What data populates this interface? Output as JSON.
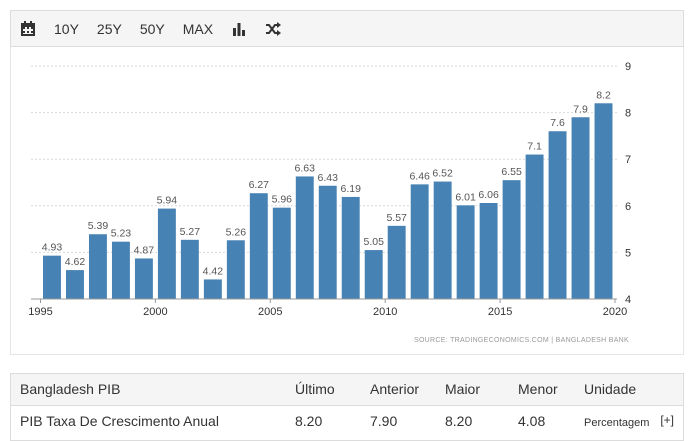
{
  "toolbar": {
    "items": [
      {
        "label": "10Y"
      },
      {
        "label": "25Y"
      },
      {
        "label": "50Y"
      },
      {
        "label": "MAX"
      }
    ],
    "icons": [
      "calendar-icon",
      "bar-chart-icon",
      "shuffle-icon"
    ]
  },
  "chart_data": {
    "type": "bar",
    "title": "",
    "xlabel": "",
    "ylabel": "",
    "x": [
      1995,
      1996,
      1997,
      1998,
      1999,
      2000,
      2001,
      2002,
      2003,
      2004,
      2005,
      2006,
      2007,
      2008,
      2009,
      2010,
      2011,
      2012,
      2013,
      2014,
      2015,
      2016,
      2017,
      2018,
      2019
    ],
    "values": [
      4.93,
      4.62,
      5.39,
      5.23,
      4.87,
      5.94,
      5.27,
      4.42,
      5.26,
      6.27,
      5.96,
      6.63,
      6.43,
      6.19,
      5.05,
      5.57,
      6.46,
      6.52,
      6.01,
      6.06,
      6.55,
      7.1,
      7.6,
      7.9,
      8.2
    ],
    "labels": [
      "4.93",
      "4.62",
      "5.39",
      "5.23",
      "4.87",
      "5.94",
      "5.27",
      "4.42",
      "5.26",
      "6.27",
      "5.96",
      "6.63",
      "6.43",
      "6.19",
      "5.05",
      "5.57",
      "6.46",
      "6.52",
      "6.01",
      "6.06",
      "6.55",
      "7.1",
      "7.6",
      "7.9",
      "8.2"
    ],
    "ylim": [
      4,
      9
    ],
    "yticks": [
      "4",
      "5",
      "6",
      "7",
      "8",
      "9"
    ],
    "xticks": [
      "1995",
      "2000",
      "2005",
      "2010",
      "2015",
      "2020"
    ],
    "xtick_values": [
      1995,
      2000,
      2005,
      2010,
      2015,
      2020
    ],
    "grid": true,
    "bar_color": "#4682b4",
    "source": "SOURCE: TRADINGECONOMICS.COM  |  BANGLADESH BANK"
  },
  "table": {
    "headers": {
      "name": "Bangladesh PIB",
      "last": "Último",
      "previous": "Anterior",
      "max": "Maior",
      "min": "Menor",
      "unit": "Unidade"
    },
    "row": {
      "name": "PIB Taxa De Crescimento Anual",
      "last": "8.20",
      "previous": "7.90",
      "max": "8.20",
      "min": "4.08",
      "unit": "Percentagem",
      "expand": "[+]"
    }
  }
}
